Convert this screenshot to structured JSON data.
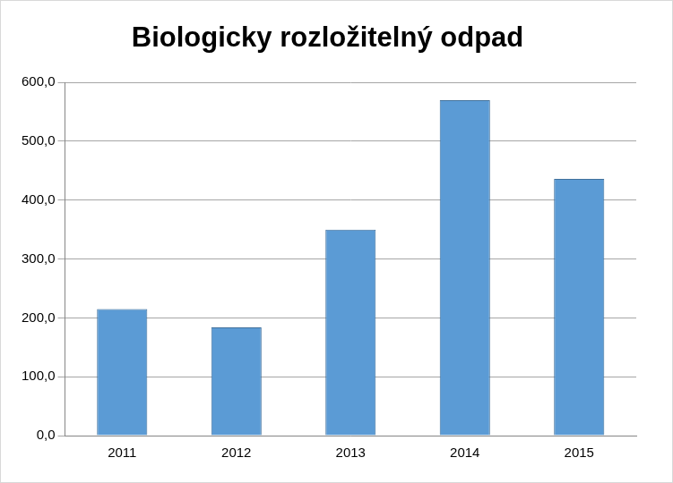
{
  "chart_data": {
    "type": "bar",
    "title": "Biologicky rozložitelný odpad",
    "categories": [
      "2011",
      "2012",
      "2013",
      "2014",
      "2015"
    ],
    "values": [
      215,
      184,
      350,
      570,
      436
    ],
    "color": "#5b9bd5",
    "ylim": [
      0,
      600
    ],
    "yticks": [
      {
        "value": 0,
        "label": "0,0"
      },
      {
        "value": 100,
        "label": "100,0"
      },
      {
        "value": 200,
        "label": "200,0"
      },
      {
        "value": 300,
        "label": "300,0"
      },
      {
        "value": 400,
        "label": "400,0"
      },
      {
        "value": 500,
        "label": "500,0"
      },
      {
        "value": 600,
        "label": "600,0"
      }
    ],
    "grid": true
  }
}
